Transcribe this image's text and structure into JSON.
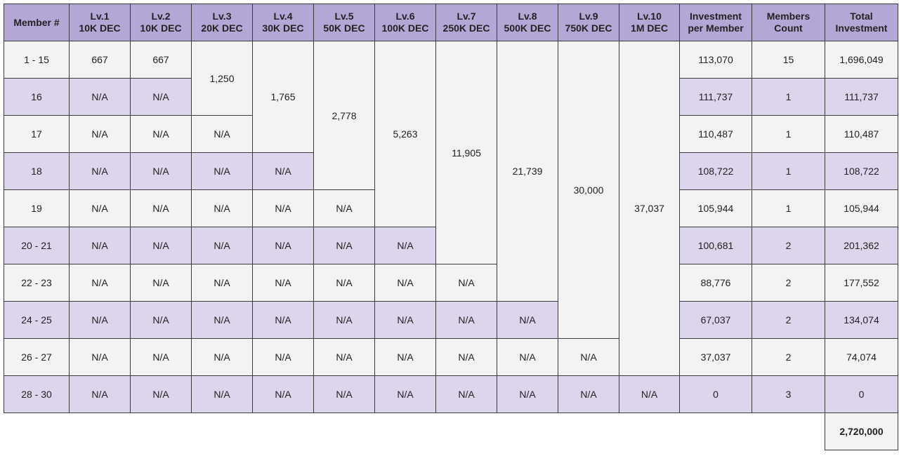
{
  "headers": [
    {
      "line1": "Member #",
      "line2": ""
    },
    {
      "line1": "Lv.1",
      "line2": "10K DEC"
    },
    {
      "line1": "Lv.2",
      "line2": "10K DEC"
    },
    {
      "line1": "Lv.3",
      "line2": "20K DEC"
    },
    {
      "line1": "Lv.4",
      "line2": "30K DEC"
    },
    {
      "line1": "Lv.5",
      "line2": "50K DEC"
    },
    {
      "line1": "Lv.6",
      "line2": "100K DEC"
    },
    {
      "line1": "Lv.7",
      "line2": "250K DEC"
    },
    {
      "line1": "Lv.8",
      "line2": "500K DEC"
    },
    {
      "line1": "Lv.9",
      "line2": "750K DEC"
    },
    {
      "line1": "Lv.10",
      "line2": "1M DEC"
    },
    {
      "line1": "Investment",
      "line2": "per Member"
    },
    {
      "line1": "Members",
      "line2": "Count"
    },
    {
      "line1": "Total",
      "line2": "Investment"
    }
  ],
  "levels": {
    "lv1": "667",
    "lv2": "667",
    "lv3": "1,250",
    "lv4": "1,765",
    "lv5": "2,778",
    "lv6": "5,263",
    "lv7": "11,905",
    "lv8": "21,739",
    "lv9": "30,000",
    "lv10": "37,037"
  },
  "na": "N/A",
  "rows": [
    {
      "member": "1 - 15",
      "invest": "113,070",
      "count": "15",
      "total": "1,696,049"
    },
    {
      "member": "16",
      "invest": "111,737",
      "count": "1",
      "total": "111,737"
    },
    {
      "member": "17",
      "invest": "110,487",
      "count": "1",
      "total": "110,487"
    },
    {
      "member": "18",
      "invest": "108,722",
      "count": "1",
      "total": "108,722"
    },
    {
      "member": "19",
      "invest": "105,944",
      "count": "1",
      "total": "105,944"
    },
    {
      "member": "20 - 21",
      "invest": "100,681",
      "count": "2",
      "total": "201,362"
    },
    {
      "member": "22 - 23",
      "invest": "88,776",
      "count": "2",
      "total": "177,552"
    },
    {
      "member": "24 - 25",
      "invest": "67,037",
      "count": "2",
      "total": "134,074"
    },
    {
      "member": "26 - 27",
      "invest": "37,037",
      "count": "2",
      "total": "74,074"
    },
    {
      "member": "28 - 30",
      "invest": "0",
      "count": "3",
      "total": "0"
    }
  ],
  "grand_total": "2,720,000",
  "colors": {
    "header": "#b4a7d6",
    "row_light": "#f3f3f3",
    "row_purple": "#dcd5ec"
  }
}
